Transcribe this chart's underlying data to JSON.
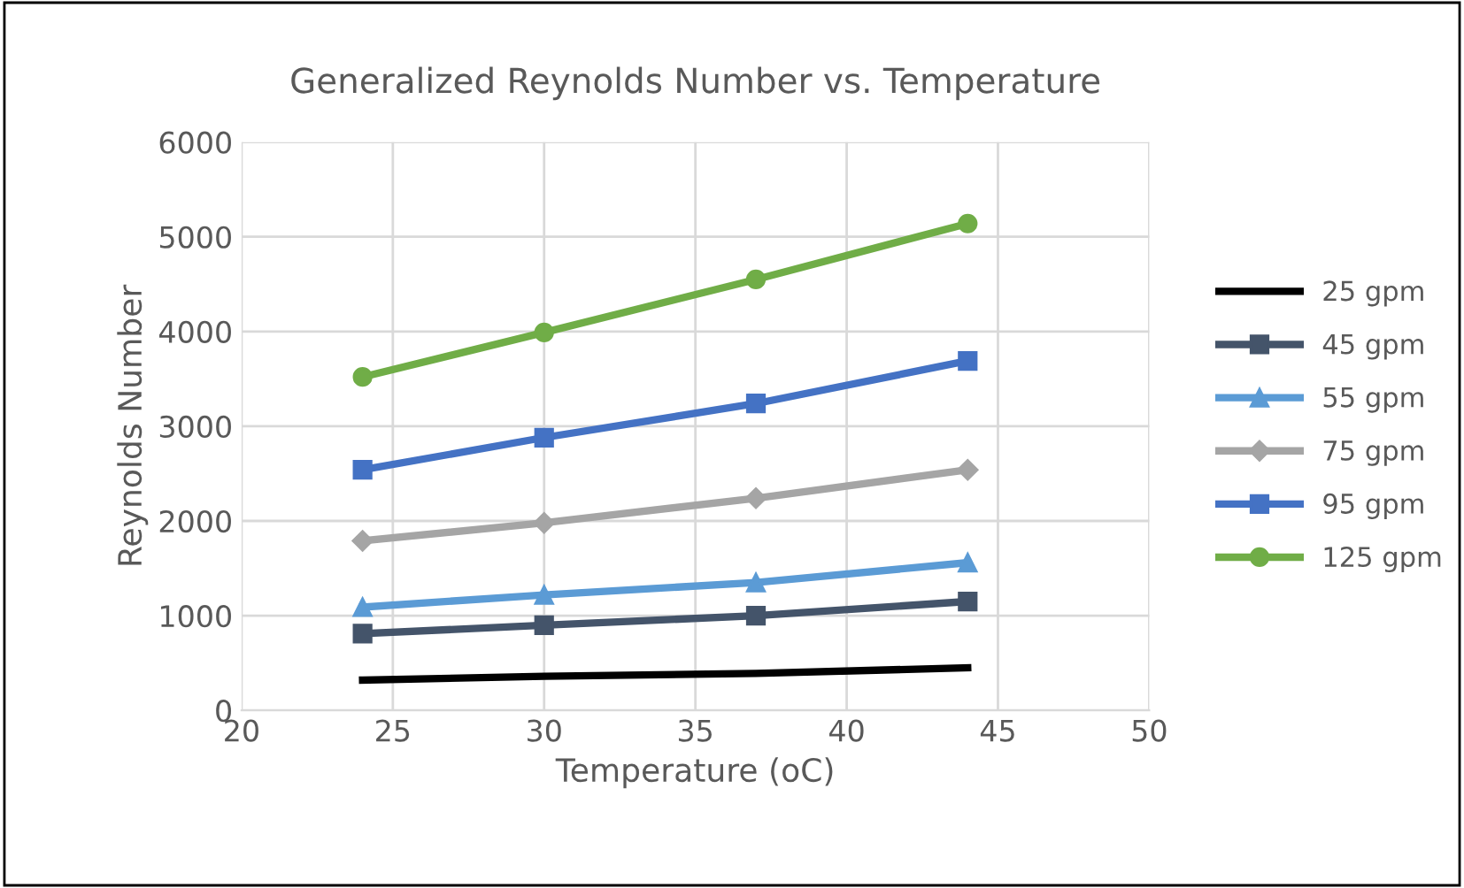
{
  "chart_data": {
    "type": "line",
    "title": "Generalized Reynolds Number vs. Temperature",
    "xlabel": "Temperature (oC)",
    "ylabel": "Reynolds Number",
    "x": [
      24,
      30,
      37,
      44
    ],
    "series": [
      {
        "name": "25 gpm",
        "color": "#000000",
        "marker": "none",
        "values": [
          320,
          360,
          390,
          450
        ]
      },
      {
        "name": "45 gpm",
        "color": "#44546a",
        "marker": "square",
        "values": [
          810,
          900,
          1000,
          1150
        ]
      },
      {
        "name": "55 gpm",
        "color": "#5b9bd5",
        "marker": "triangle",
        "values": [
          1090,
          1220,
          1350,
          1560
        ]
      },
      {
        "name": "75 gpm",
        "color": "#a5a5a5",
        "marker": "diamond",
        "values": [
          1790,
          1980,
          2240,
          2540
        ]
      },
      {
        "name": "95 gpm",
        "color": "#4472c4",
        "marker": "square",
        "values": [
          2540,
          2880,
          3240,
          3690
        ]
      },
      {
        "name": "125 gpm",
        "color": "#70ad47",
        "marker": "circle",
        "values": [
          3520,
          3990,
          4550,
          5140
        ]
      }
    ],
    "xlim": [
      20,
      50
    ],
    "xticks": [
      20,
      25,
      30,
      35,
      40,
      45,
      50
    ],
    "ylim": [
      0,
      6000
    ],
    "yticks": [
      0,
      1000,
      2000,
      3000,
      4000,
      5000,
      6000
    ],
    "grid": true,
    "legend": "right",
    "line_style": "solid"
  }
}
